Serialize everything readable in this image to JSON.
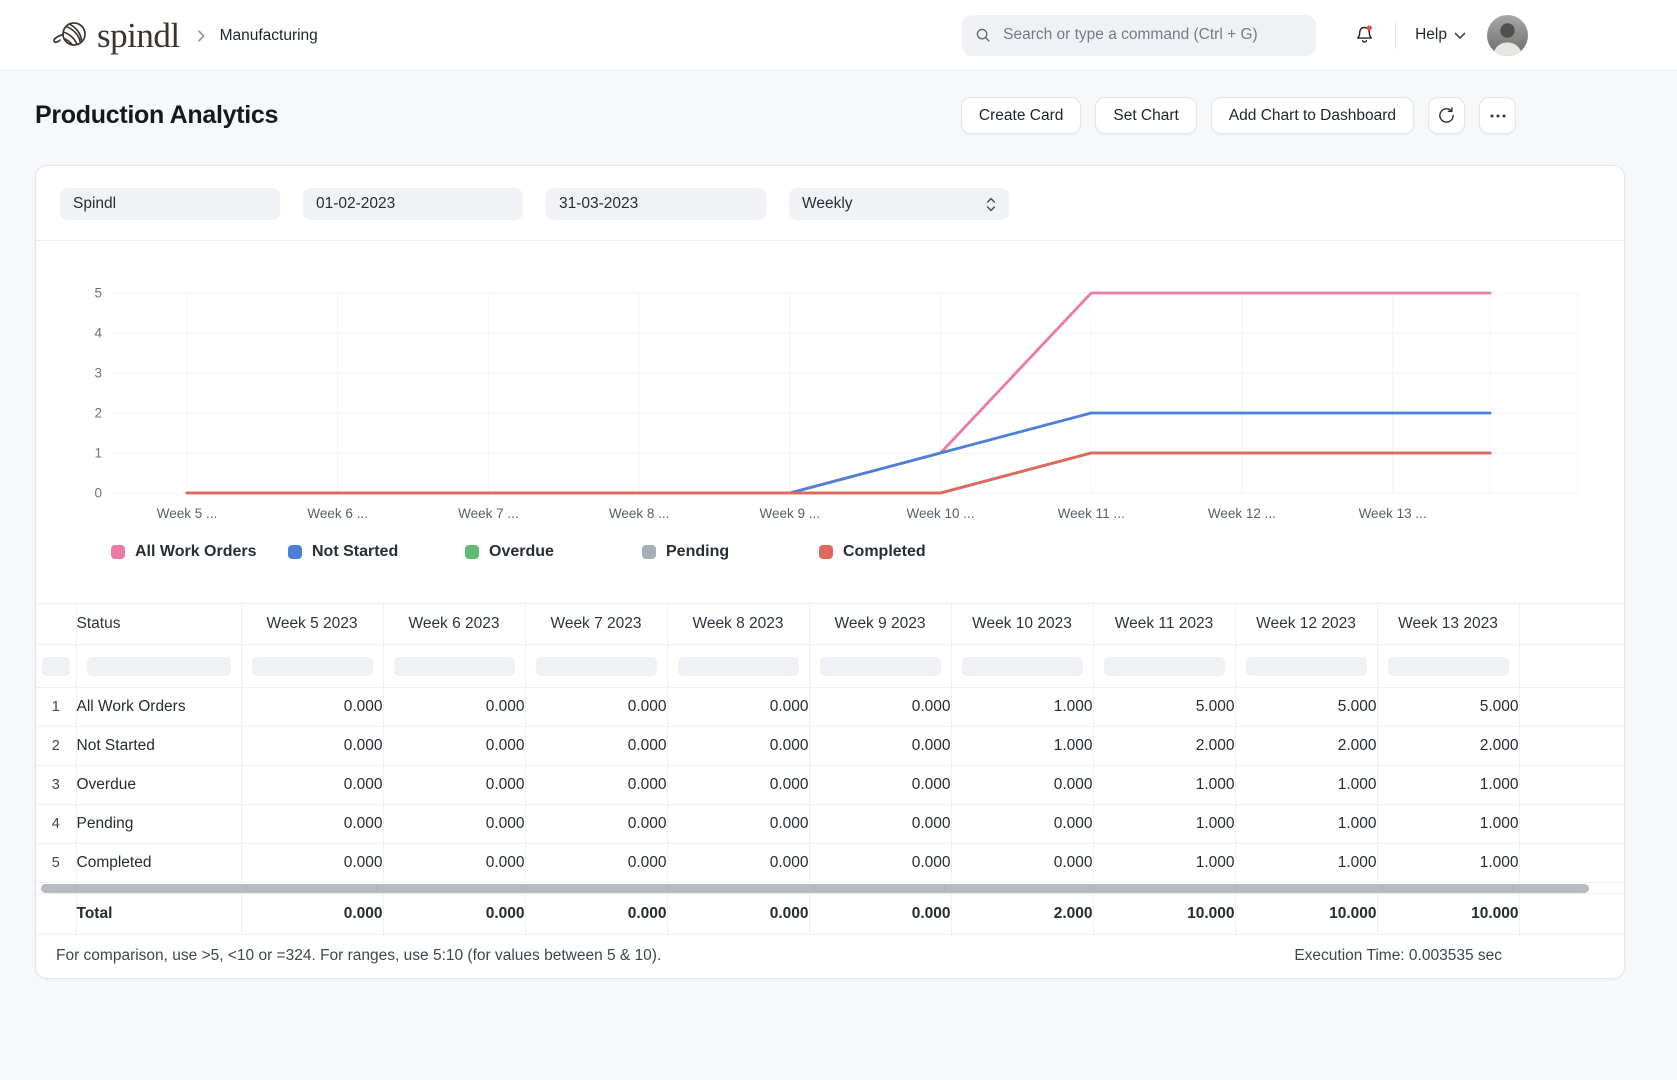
{
  "header": {
    "logo_text": "spindl",
    "breadcrumb": "Manufacturing",
    "search_placeholder": "Search or type a command (Ctrl + G)",
    "help_label": "Help"
  },
  "page": {
    "title": "Production Analytics",
    "buttons": {
      "create_card": "Create Card",
      "set_chart": "Set Chart",
      "add_chart": "Add Chart to Dashboard"
    }
  },
  "filters": {
    "workspace": "Spindl",
    "start_date": "01-02-2023",
    "end_date": "31-03-2023",
    "granularity": "Weekly"
  },
  "chart_data": {
    "type": "line",
    "x": [
      "Week 5 ...",
      "Week 6 ...",
      "Week 7 ...",
      "Week 8 ...",
      "Week 9 ...",
      "Week 10 ...",
      "Week 11 ...",
      "Week 12 ...",
      "Week 13 ..."
    ],
    "yticks": [
      0,
      1,
      2,
      3,
      4,
      5
    ],
    "ylim": [
      0,
      5
    ],
    "grid": true,
    "legend_position": "bottom",
    "series": [
      {
        "name": "All Work Orders",
        "color": "#EC7BA4",
        "values": [
          0,
          0,
          0,
          0,
          0,
          1,
          5,
          5,
          5
        ]
      },
      {
        "name": "Not Started",
        "color": "#4D80D8",
        "values": [
          0,
          0,
          0,
          0,
          0,
          1,
          2,
          2,
          2
        ]
      },
      {
        "name": "Overdue",
        "color": "#5FBA72",
        "values": [
          0,
          0,
          0,
          0,
          0,
          0,
          1,
          1,
          1
        ]
      },
      {
        "name": "Pending",
        "color": "#A8AEB8",
        "values": [
          0,
          0,
          0,
          0,
          0,
          0,
          1,
          1,
          1
        ]
      },
      {
        "name": "Completed",
        "color": "#E0685C",
        "values": [
          0,
          0,
          0,
          0,
          0,
          0,
          1,
          1,
          1
        ]
      }
    ]
  },
  "table": {
    "status_header": "Status",
    "week_headers": [
      "Week 5 2023",
      "Week 6 2023",
      "Week 7 2023",
      "Week 8 2023",
      "Week 9 2023",
      "Week 10 2023",
      "Week 11 2023",
      "Week 12 2023",
      "Week 13 2023"
    ],
    "decimals": 3,
    "rows": [
      {
        "index": "1",
        "status": "All Work Orders",
        "values": [
          0,
          0,
          0,
          0,
          0,
          1,
          5,
          5,
          5
        ]
      },
      {
        "index": "2",
        "status": "Not Started",
        "values": [
          0,
          0,
          0,
          0,
          0,
          1,
          2,
          2,
          2
        ]
      },
      {
        "index": "3",
        "status": "Overdue",
        "values": [
          0,
          0,
          0,
          0,
          0,
          0,
          1,
          1,
          1
        ]
      },
      {
        "index": "4",
        "status": "Pending",
        "values": [
          0,
          0,
          0,
          0,
          0,
          0,
          1,
          1,
          1
        ]
      },
      {
        "index": "5",
        "status": "Completed",
        "values": [
          0,
          0,
          0,
          0,
          0,
          0,
          1,
          1,
          1
        ]
      }
    ],
    "total": {
      "label": "Total",
      "values": [
        0,
        0,
        0,
        0,
        0,
        2,
        10,
        10,
        10
      ]
    }
  },
  "footer": {
    "hint": "For comparison, use >5, <10 or =324. For ranges, use 5:10 (for values between 5 & 10).",
    "execution_time": "Execution Time: 0.003535 sec"
  }
}
